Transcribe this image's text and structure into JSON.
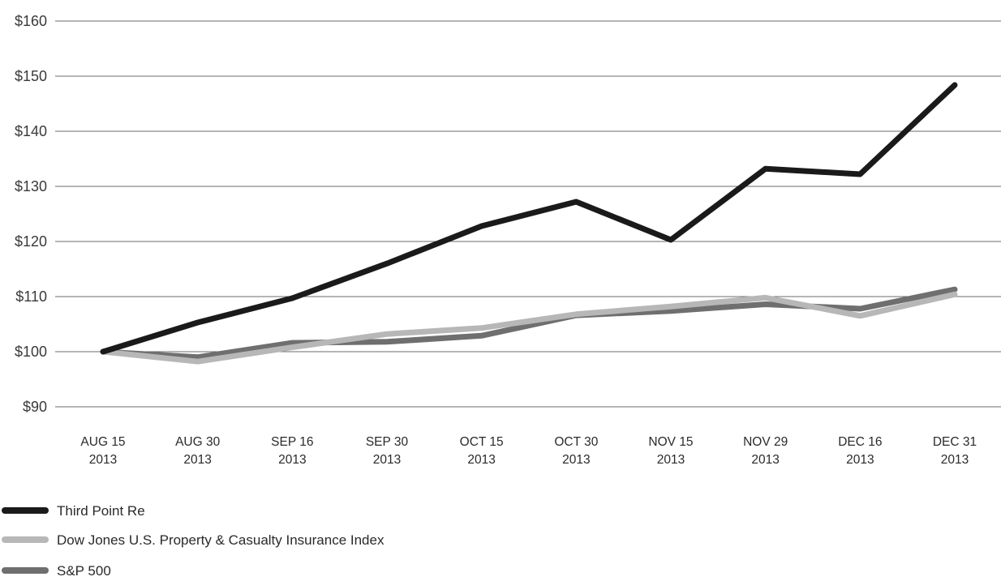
{
  "chart_data": {
    "type": "line",
    "title": "",
    "xlabel": "",
    "ylabel": "",
    "categories": [
      [
        "AUG 15",
        "2013"
      ],
      [
        "AUG 30",
        "2013"
      ],
      [
        "SEP 16",
        "2013"
      ],
      [
        "SEP 30",
        "2013"
      ],
      [
        "OCT 15",
        "2013"
      ],
      [
        "OCT 30",
        "2013"
      ],
      [
        "NOV 15",
        "2013"
      ],
      [
        "NOV 29",
        "2013"
      ],
      [
        "DEC 16",
        "2013"
      ],
      [
        "DEC 31",
        "2013"
      ]
    ],
    "ylim": [
      90,
      160
    ],
    "yticks": [
      160,
      150,
      140,
      130,
      120,
      110,
      100,
      90
    ],
    "ytick_labels": [
      "$160",
      "$150",
      "$140",
      "$130",
      "$120",
      "$110",
      "$100",
      "$90"
    ],
    "grid": true,
    "legend_position": "bottom-left",
    "series": [
      {
        "name": "Third Point Re",
        "color": "#1a1a1a",
        "values": [
          100,
          105.3,
          109.7,
          116.0,
          122.8,
          127.2,
          120.3,
          133.2,
          132.2,
          148.4
        ]
      },
      {
        "name": "Dow Jones U.S. Property & Casualty Insurance Index",
        "color": "#b7b7b7",
        "values": [
          100,
          98.2,
          100.8,
          103.2,
          104.3,
          106.8,
          108.2,
          109.8,
          106.5,
          110.4
        ]
      },
      {
        "name": "S&P 500",
        "color": "#6f6f6f",
        "values": [
          100,
          99.0,
          101.6,
          101.8,
          102.9,
          106.6,
          107.4,
          108.6,
          107.8,
          111.3
        ]
      }
    ],
    "draw_order": [
      2,
      1,
      0
    ]
  }
}
